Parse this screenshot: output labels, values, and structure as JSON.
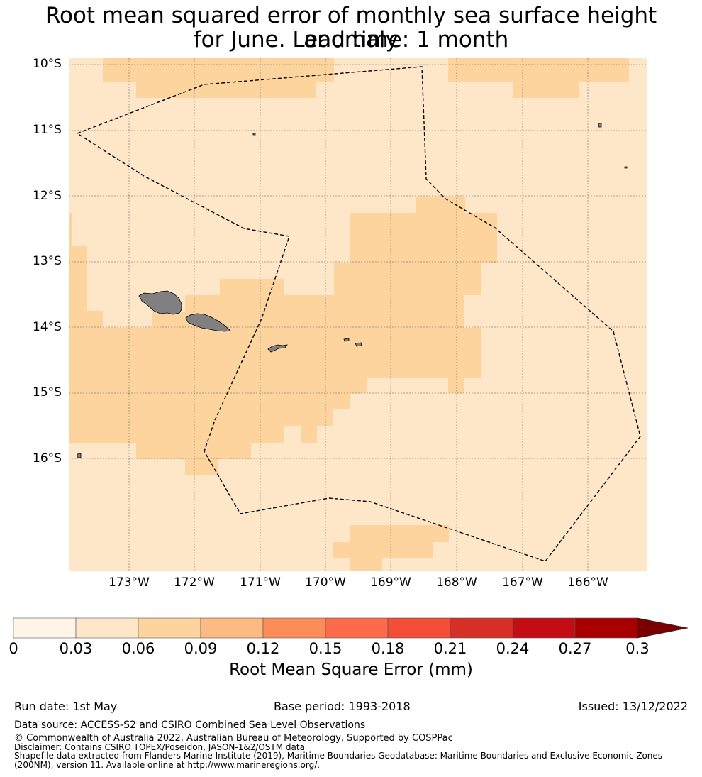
{
  "title_line1": "Root mean squared error of monthly sea surface height anomaly",
  "title_line2": "for June. Lead time: 1 month",
  "map": {
    "lat_labels": [
      "10°S",
      "11°S",
      "12°S",
      "13°S",
      "14°S",
      "15°S",
      "16°S"
    ],
    "lon_labels": [
      "173°W",
      "172°W",
      "171°W",
      "170°W",
      "169°W",
      "168°W",
      "167°W",
      "166°W"
    ],
    "colors": {
      "ocean_low": "#fee6c8",
      "ocean_mid": "#fdd49e",
      "land": "#808080",
      "eez_line": "#000000"
    },
    "gridlines": true
  },
  "colorbar": {
    "label": "Root Mean Square Error (mm)",
    "ticks": [
      "0",
      "0.03",
      "0.06",
      "0.09",
      "0.12",
      "0.15",
      "0.18",
      "0.21",
      "0.24",
      "0.27",
      "0.3"
    ],
    "colors": [
      "#fff5e6",
      "#fee6c8",
      "#fdd49e",
      "#fdbb84",
      "#fc8d59",
      "#fb6a4a",
      "#f44d38",
      "#d73027",
      "#c40c14",
      "#a80000"
    ],
    "extend_color": "#7a0000"
  },
  "footer": {
    "run_date": "Run date: 1st May",
    "base_period": "Base period: 1993-2018",
    "issued": "Issued: 13/12/2022",
    "data_source": "Data source: ACCESS-S2 and CSIRO Combined Sea Level Observations",
    "copyright": "© Commonwealth of Australia 2022, Australian Bureau of Meteorology, Supported by COSPPac",
    "disclaimer": "Disclaimer: Contains CSIRO TOPEX/Poseidon, JASON-1&2/OSTM data",
    "shapefile": "Shapefile data extracted from Flanders Marine Institute (2019), Maritime Boundaries Geodatabase: Maritime Boundaries and Exclusive Economic Zones (200NM), version 11. Available online at http://www.marineregions.org/."
  }
}
